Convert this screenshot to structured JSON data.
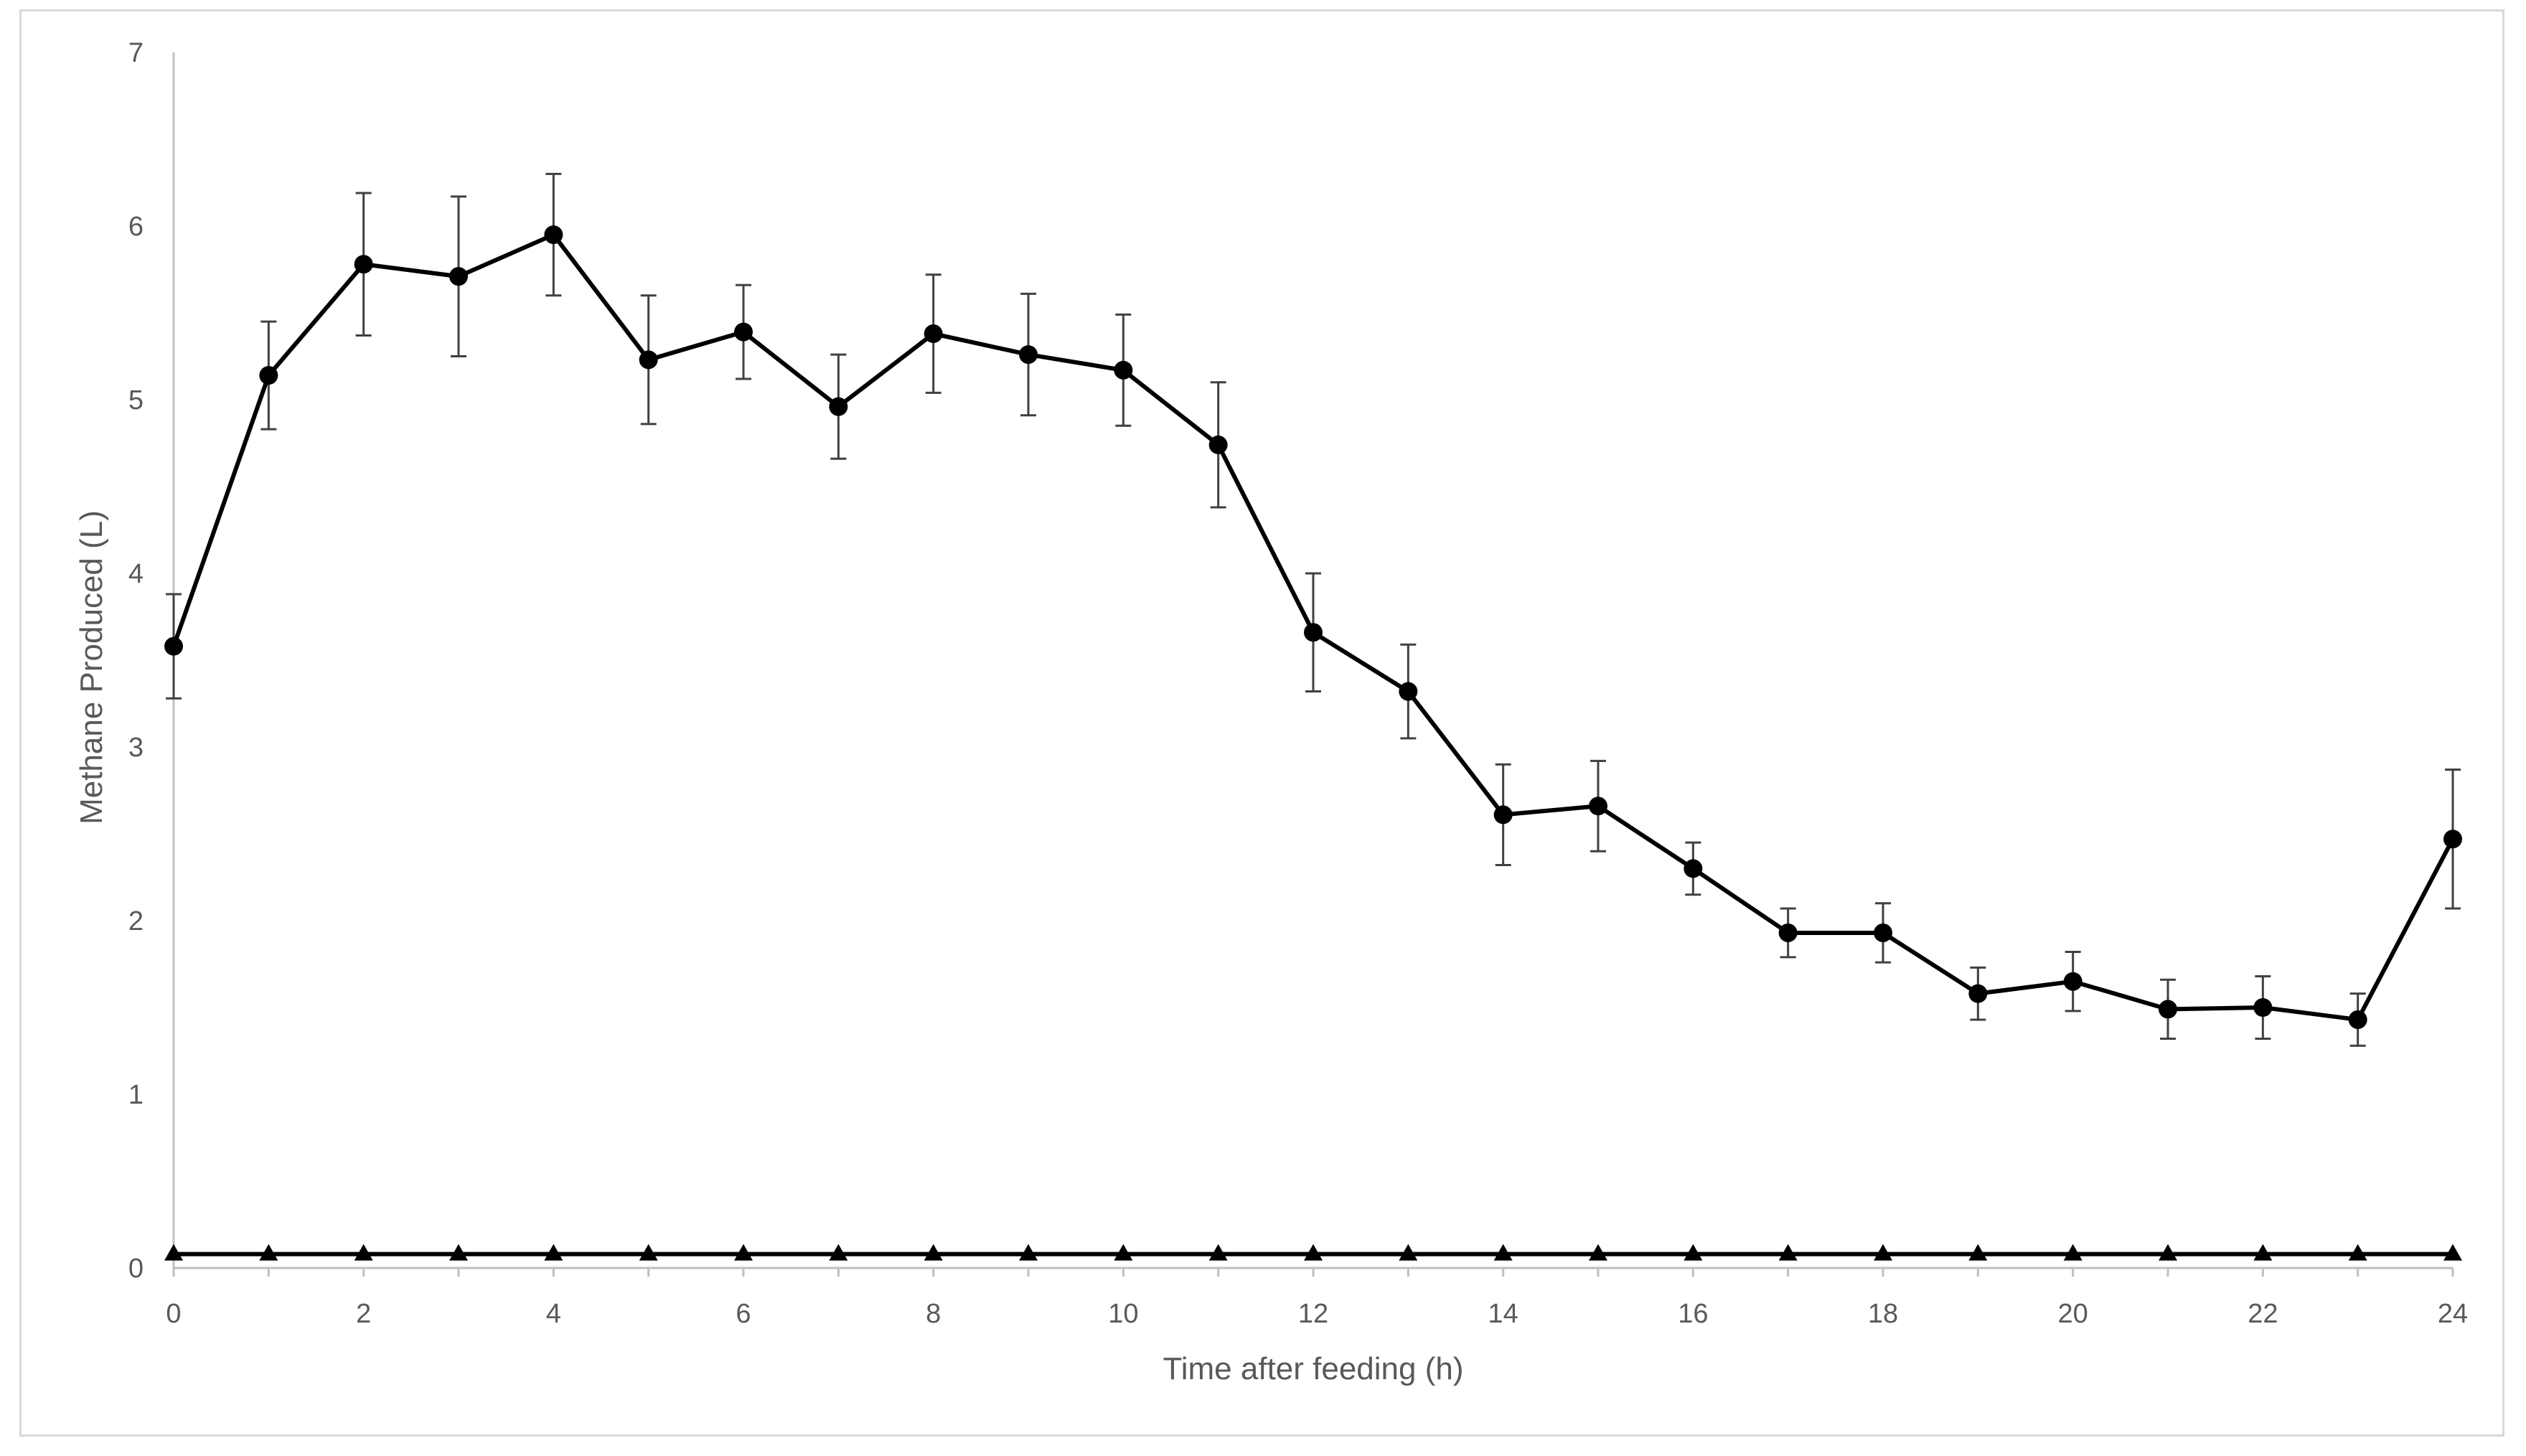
{
  "chart_data": {
    "type": "line",
    "title": "",
    "xlabel": "Time after feeding (h)",
    "ylabel": "Methane Produced (L)",
    "xlim": [
      0,
      24
    ],
    "ylim": [
      0,
      7
    ],
    "x_ticks": [
      "0",
      "2",
      "4",
      "6",
      "8",
      "10",
      "12",
      "14",
      "16",
      "18",
      "20",
      "22",
      "24"
    ],
    "y_ticks": [
      "0",
      "1",
      "2",
      "3",
      "4",
      "5",
      "6",
      "7"
    ],
    "grid": false,
    "legend": "none",
    "x": [
      0,
      1,
      2,
      3,
      4,
      5,
      6,
      7,
      8,
      9,
      10,
      11,
      12,
      13,
      14,
      15,
      16,
      17,
      18,
      19,
      20,
      21,
      22,
      23,
      24
    ],
    "series": [
      {
        "marker": "circle",
        "color": "#000000",
        "values": [
          3.58,
          5.14,
          5.78,
          5.71,
          5.95,
          5.23,
          5.39,
          4.96,
          5.38,
          5.26,
          5.17,
          4.74,
          3.66,
          3.32,
          2.61,
          2.66,
          2.3,
          1.93,
          1.93,
          1.58,
          1.65,
          1.49,
          1.5,
          1.43,
          2.47
        ],
        "error": [
          0.3,
          0.31,
          0.41,
          0.46,
          0.35,
          0.37,
          0.27,
          0.3,
          0.34,
          0.35,
          0.32,
          0.36,
          0.34,
          0.27,
          0.29,
          0.26,
          0.15,
          0.14,
          0.17,
          0.15,
          0.17,
          0.17,
          0.18,
          0.15,
          0.4
        ]
      },
      {
        "marker": "triangle",
        "color": "#000000",
        "values": [
          0.08,
          0.08,
          0.08,
          0.08,
          0.08,
          0.08,
          0.08,
          0.08,
          0.08,
          0.08,
          0.08,
          0.08,
          0.08,
          0.08,
          0.08,
          0.08,
          0.08,
          0.08,
          0.08,
          0.08,
          0.08,
          0.08,
          0.08,
          0.08,
          0.08
        ]
      }
    ]
  }
}
